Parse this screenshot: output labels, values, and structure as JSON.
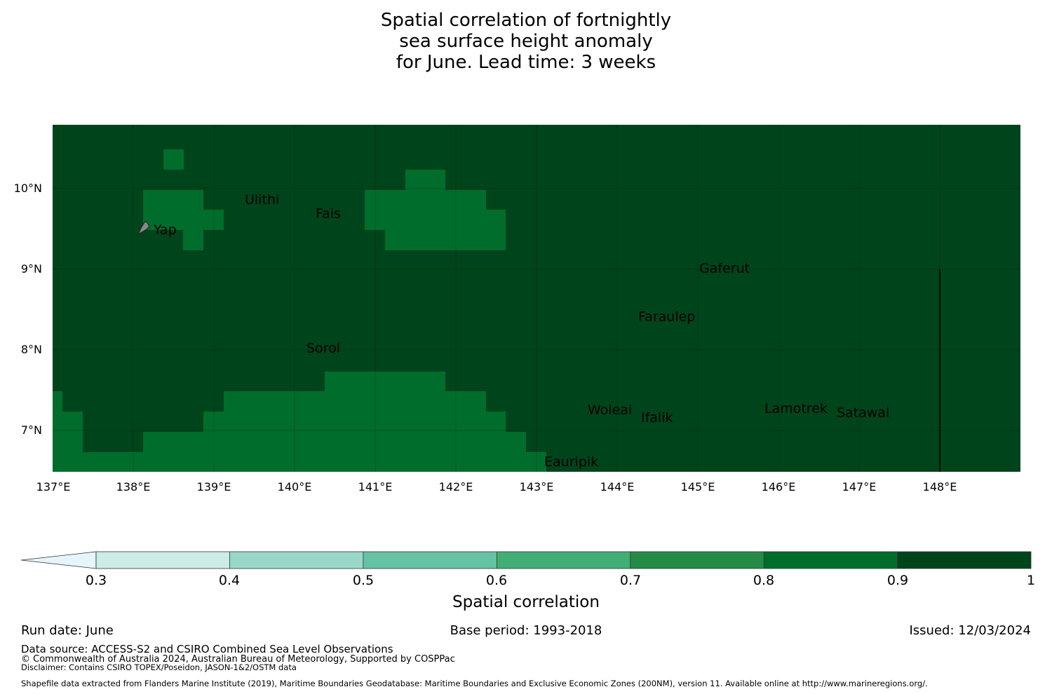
{
  "title": {
    "line1": "Spatial correlation of fortnightly",
    "line2": "sea surface height anomaly",
    "line3": "for June. Lead time: 3 weeks"
  },
  "map": {
    "lat_ticks": [
      "10°N",
      "9°N",
      "8°N",
      "7°N"
    ],
    "lon_ticks": [
      "137°E",
      "138°E",
      "139°E",
      "140°E",
      "141°E",
      "142°E",
      "143°E",
      "144°E",
      "145°E",
      "146°E",
      "147°E",
      "148°E"
    ],
    "places": [
      {
        "name": "Ulithi"
      },
      {
        "name": "Fais"
      },
      {
        "name": "Yap"
      },
      {
        "name": "Gaferut"
      },
      {
        "name": "Faraulep"
      },
      {
        "name": "Sorol"
      },
      {
        "name": "Woleai"
      },
      {
        "name": "Ifalik"
      },
      {
        "name": "Lamotrek"
      },
      {
        "name": "Satawal"
      },
      {
        "name": "Eauripik"
      }
    ],
    "colors": {
      "correlation_0_9_to_1": "#00441b",
      "correlation_0_8_to_0_9": "#006d2c"
    }
  },
  "colorbar": {
    "ticks": [
      "0.3",
      "0.4",
      "0.5",
      "0.6",
      "0.7",
      "0.8",
      "0.9",
      "1"
    ],
    "colors": [
      "#e5f5f9",
      "#ccece6",
      "#99d8c9",
      "#66c2a4",
      "#41ae76",
      "#238b45",
      "#006d2c",
      "#00441b"
    ],
    "label": "Spatial correlation"
  },
  "footer": {
    "run_date": "Run date: June",
    "base_period": "Base period: 1993-2018",
    "issued": "Issued: 12/03/2024",
    "data_source": "Data source: ACCESS-S2 and CSIRO Combined Sea Level Observations",
    "copyright": "© Commonwealth of Australia 2024, Australian Bureau of Meteorology, Supported by COSPPac",
    "disclaimer": "Disclaimer: Contains CSIRO TOPEX/Poseidon, JASON-1&2/OSTM data",
    "shapefile": "Shapefile data extracted from Flanders Marine Institute (2019), Maritime Boundaries Geodatabase: Maritime Boundaries and Exclusive Economic Zones (200NM), version 11. Available online at http://www.marineregions.org/."
  }
}
